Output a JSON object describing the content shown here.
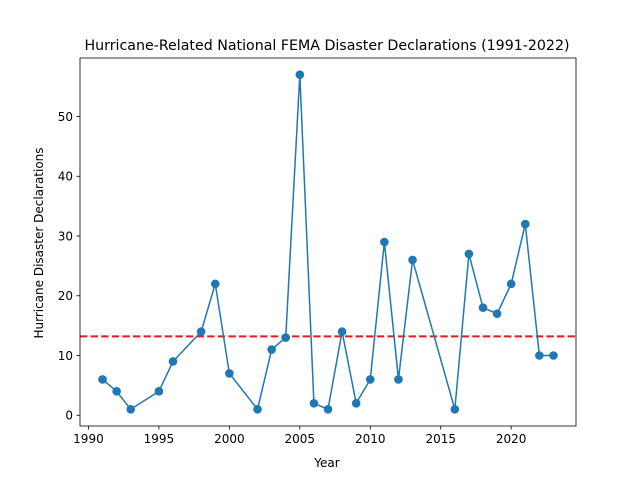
{
  "chart_data": {
    "type": "line",
    "title": "Hurricane-Related National FEMA Disaster Declarations (1991-2022)",
    "xlabel": "Year",
    "ylabel": "Hurricane Disaster Declarations",
    "xlim": [
      1989.4,
      2024.6
    ],
    "ylim": [
      -1.8,
      59.8
    ],
    "xticks": [
      1990,
      1995,
      2000,
      2005,
      2010,
      2015,
      2020
    ],
    "yticks": [
      0,
      10,
      20,
      30,
      40,
      50
    ],
    "grid": false,
    "series": [
      {
        "color": "#1f77b4",
        "marker": "circle",
        "x": [
          1991,
          1992,
          1993,
          1995,
          1996,
          1998,
          1999,
          2000,
          2002,
          2003,
          2004,
          2005,
          2006,
          2007,
          2008,
          2009,
          2010,
          2011,
          2012,
          2013,
          2016,
          2017,
          2018,
          2019,
          2020,
          2021,
          2022,
          2023
        ],
        "y": [
          6,
          4,
          1,
          4,
          9,
          14,
          22,
          7,
          1,
          11,
          13,
          57,
          2,
          1,
          14,
          2,
          6,
          29,
          6,
          26,
          1,
          27,
          18,
          17,
          22,
          32,
          10,
          10
        ]
      }
    ],
    "reference_line": {
      "y": 13.2,
      "color": "#e31a1c",
      "style": "dashed"
    }
  }
}
